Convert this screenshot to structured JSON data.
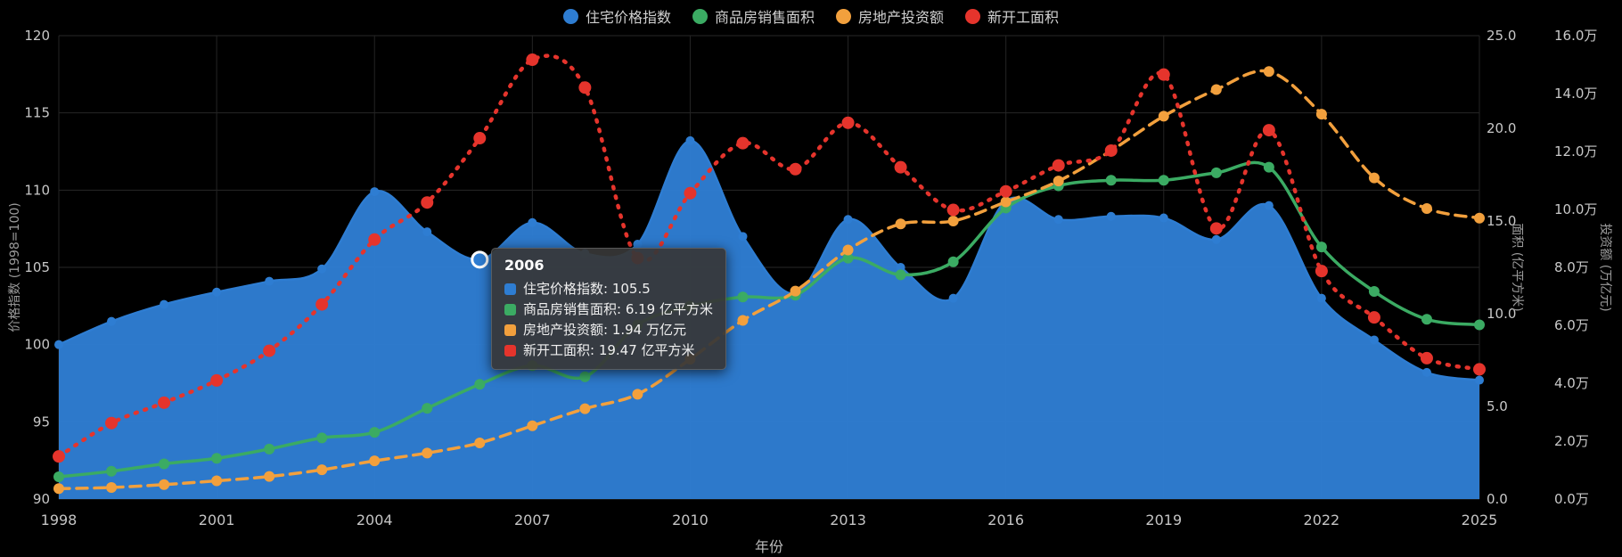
{
  "chart_data": {
    "type": "line",
    "background": "#000000",
    "xlabel": "年份",
    "x": [
      1998,
      1999,
      2000,
      2001,
      2002,
      2003,
      2004,
      2005,
      2006,
      2007,
      2008,
      2009,
      2010,
      2011,
      2012,
      2013,
      2014,
      2015,
      2016,
      2017,
      2018,
      2019,
      2020,
      2021,
      2022,
      2023,
      2024,
      2025
    ],
    "x_ticks": [
      1998,
      2001,
      2004,
      2007,
      2010,
      2013,
      2016,
      2019,
      2022,
      2025
    ],
    "grid": true,
    "legend_position": "top-center",
    "axes": {
      "price": {
        "name": "价格指数 (1998=100)",
        "side": "left",
        "min": 90,
        "max": 120,
        "ticks": [
          "90",
          "95",
          "100",
          "105",
          "110",
          "115",
          "120"
        ]
      },
      "area": {
        "name": "面积 (亿平方米)",
        "side": "right",
        "min": 0,
        "max": 25,
        "ticks": [
          "0.0",
          "5.0",
          "10.0",
          "15.0",
          "20.0",
          "25.0"
        ]
      },
      "invest": {
        "name": "投资额 (万亿元)",
        "side": "right-outer",
        "min": 0,
        "max": 16,
        "ticks": [
          "0.0万",
          "2.0万",
          "4.0万",
          "6.0万",
          "8.0万",
          "10.0万",
          "12.0万",
          "14.0万",
          "16.0万"
        ]
      }
    },
    "series": [
      {
        "name": "住宅价格指数",
        "type": "area",
        "axis": "price",
        "color": "#2e7dd2",
        "style": "solid",
        "values": [
          100.0,
          101.5,
          102.6,
          103.4,
          104.1,
          104.9,
          109.9,
          107.3,
          105.5,
          107.9,
          105.9,
          106.5,
          113.2,
          107.0,
          103.3,
          108.1,
          105.0,
          103.0,
          109.3,
          108.1,
          108.3,
          108.2,
          106.8,
          109.0,
          103.0,
          100.3,
          98.2,
          97.7
        ]
      },
      {
        "name": "商品房销售面积",
        "type": "line",
        "axis": "area",
        "color": "#3bab63",
        "style": "solid",
        "values": [
          1.2,
          1.5,
          1.9,
          2.2,
          2.7,
          3.3,
          3.6,
          4.9,
          6.19,
          7.2,
          6.6,
          9.4,
          10.4,
          10.9,
          11.0,
          13.0,
          12.1,
          12.8,
          15.7,
          16.9,
          17.2,
          17.2,
          17.6,
          17.9,
          13.6,
          11.2,
          9.7,
          9.4
        ]
      },
      {
        "name": "房地产投资额",
        "type": "line",
        "axis": "invest",
        "color": "#f2a03d",
        "style": "dashed",
        "values": [
          0.36,
          0.4,
          0.5,
          0.63,
          0.78,
          1.01,
          1.32,
          1.59,
          1.94,
          2.53,
          3.12,
          3.62,
          4.83,
          6.17,
          7.18,
          8.6,
          9.5,
          9.6,
          10.26,
          10.98,
          12.03,
          13.22,
          14.14,
          14.76,
          13.29,
          11.09,
          10.03,
          9.7
        ]
      },
      {
        "name": "新开工面积",
        "type": "line",
        "axis": "area",
        "color": "#e5342c",
        "style": "dotted",
        "values": [
          2.3,
          4.1,
          5.2,
          6.4,
          8.0,
          10.5,
          14.0,
          16.0,
          19.47,
          23.7,
          22.2,
          13.0,
          16.5,
          19.2,
          17.8,
          20.3,
          17.9,
          15.6,
          16.6,
          18.0,
          18.8,
          22.9,
          14.6,
          19.9,
          12.3,
          9.8,
          7.6,
          7.0
        ]
      }
    ]
  },
  "legend": {
    "items": [
      {
        "label": "住宅价格指数",
        "color": "#2e7dd2"
      },
      {
        "label": "商品房销售面积",
        "color": "#3bab63"
      },
      {
        "label": "房地产投资额",
        "color": "#f2a03d"
      },
      {
        "label": "新开工面积",
        "color": "#e5342c"
      }
    ]
  },
  "tooltip": {
    "title": "2006",
    "highlight_year": 2006,
    "rows": [
      {
        "label": "住宅价格指数",
        "value": "105.5",
        "color": "#2e7dd2"
      },
      {
        "label": "商品房销售面积",
        "value": "6.19 亿平方米",
        "color": "#3bab63"
      },
      {
        "label": "房地产投资额",
        "value": "1.94 万亿元",
        "color": "#f2a03d"
      },
      {
        "label": "新开工面积",
        "value": "19.47 亿平方米",
        "color": "#e5342c"
      }
    ]
  }
}
